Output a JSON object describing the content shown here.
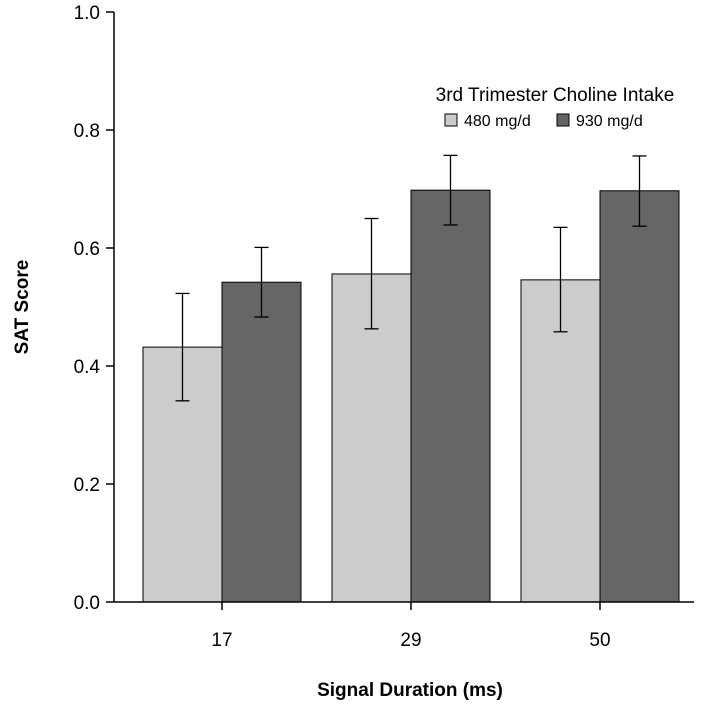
{
  "chart_data": {
    "type": "bar",
    "title": "",
    "xlabel": "Signal Duration (ms)",
    "ylabel": "SAT Score",
    "categories": [
      "17",
      "29",
      "50"
    ],
    "ylim": [
      0.0,
      1.0
    ],
    "yticks": [
      "0.0",
      "0.2",
      "0.4",
      "0.6",
      "0.8",
      "1.0"
    ],
    "legend_title": "3rd Trimester Choline Intake",
    "legend_position": "top-right",
    "series": [
      {
        "name": "480 mg/d",
        "color": "#cccccc",
        "values": [
          0.432,
          0.556,
          0.546
        ],
        "err_low": [
          0.341,
          0.463,
          0.458
        ],
        "err_high": [
          0.523,
          0.65,
          0.635
        ]
      },
      {
        "name": "930 mg/d",
        "color": "#666666",
        "values": [
          0.542,
          0.698,
          0.697
        ],
        "err_low": [
          0.483,
          0.639,
          0.637
        ],
        "err_high": [
          0.601,
          0.757,
          0.756
        ]
      }
    ]
  }
}
